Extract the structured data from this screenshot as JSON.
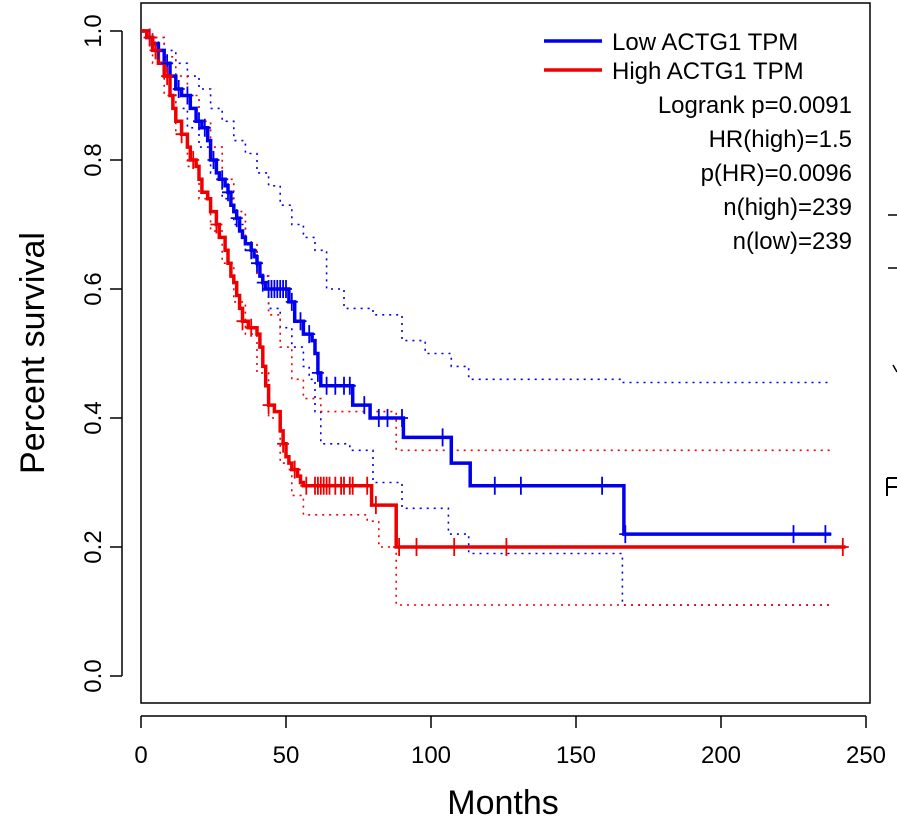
{
  "chart_data": {
    "type": "line",
    "subtype": "kaplan-meier",
    "title": "",
    "xlabel": "Months",
    "ylabel": "Percent survival",
    "xlim": [
      0,
      250
    ],
    "ylim": [
      0,
      1.0
    ],
    "x_ticks": [
      "0",
      "50",
      "100",
      "150",
      "200",
      "250"
    ],
    "y_ticks": [
      "0.0",
      "0.2",
      "0.4",
      "0.6",
      "0.8",
      "1.0"
    ],
    "grid": false,
    "legend_position": "top-right",
    "series": [
      {
        "name": "Low ACTG1 TPM",
        "color": "#0000ee",
        "steps": [
          [
            0,
            1.0
          ],
          [
            2,
            0.99
          ],
          [
            4,
            0.98
          ],
          [
            6,
            0.97
          ],
          [
            8,
            0.95
          ],
          [
            10,
            0.93
          ],
          [
            12,
            0.91
          ],
          [
            14,
            0.9
          ],
          [
            17,
            0.88
          ],
          [
            19,
            0.86
          ],
          [
            21,
            0.85
          ],
          [
            23,
            0.83
          ],
          [
            24,
            0.8
          ],
          [
            26,
            0.78
          ],
          [
            27,
            0.77
          ],
          [
            29,
            0.76
          ],
          [
            30,
            0.75
          ],
          [
            31,
            0.73
          ],
          [
            32,
            0.72
          ],
          [
            33,
            0.71
          ],
          [
            34,
            0.69
          ],
          [
            35,
            0.68
          ],
          [
            36,
            0.67
          ],
          [
            38,
            0.66
          ],
          [
            39,
            0.65
          ],
          [
            40,
            0.64
          ],
          [
            41,
            0.62
          ],
          [
            42,
            0.61
          ],
          [
            43,
            0.6
          ],
          [
            50,
            0.6
          ],
          [
            51,
            0.58
          ],
          [
            53,
            0.55
          ],
          [
            56,
            0.53
          ],
          [
            59,
            0.52
          ],
          [
            60,
            0.5
          ],
          [
            61,
            0.47
          ],
          [
            62,
            0.45
          ],
          [
            72,
            0.45
          ],
          [
            73,
            0.42
          ],
          [
            78,
            0.42
          ],
          [
            79,
            0.4
          ],
          [
            90,
            0.4
          ],
          [
            90.5,
            0.37
          ],
          [
            106,
            0.37
          ],
          [
            107,
            0.33
          ],
          [
            113,
            0.33
          ],
          [
            113.5,
            0.295
          ],
          [
            166,
            0.295
          ],
          [
            166.5,
            0.22
          ],
          [
            238,
            0.22
          ]
        ],
        "ci_upper": [
          [
            0,
            1.0
          ],
          [
            4,
            0.99
          ],
          [
            8,
            0.97
          ],
          [
            12,
            0.95
          ],
          [
            16,
            0.93
          ],
          [
            20,
            0.91
          ],
          [
            24,
            0.88
          ],
          [
            28,
            0.86
          ],
          [
            32,
            0.83
          ],
          [
            36,
            0.81
          ],
          [
            40,
            0.78
          ],
          [
            44,
            0.76
          ],
          [
            48,
            0.73
          ],
          [
            52,
            0.7
          ],
          [
            56,
            0.68
          ],
          [
            60,
            0.66
          ],
          [
            64,
            0.6
          ],
          [
            70,
            0.57
          ],
          [
            80,
            0.56
          ],
          [
            90,
            0.52
          ],
          [
            98,
            0.5
          ],
          [
            107,
            0.48
          ],
          [
            113,
            0.46
          ],
          [
            166,
            0.455
          ],
          [
            238,
            0.455
          ]
        ],
        "ci_lower": [
          [
            0,
            1.0
          ],
          [
            4,
            0.97
          ],
          [
            8,
            0.93
          ],
          [
            12,
            0.88
          ],
          [
            16,
            0.85
          ],
          [
            20,
            0.82
          ],
          [
            24,
            0.78
          ],
          [
            28,
            0.74
          ],
          [
            32,
            0.7
          ],
          [
            36,
            0.66
          ],
          [
            40,
            0.62
          ],
          [
            44,
            0.57
          ],
          [
            48,
            0.54
          ],
          [
            52,
            0.51
          ],
          [
            56,
            0.48
          ],
          [
            58,
            0.46
          ],
          [
            60,
            0.41
          ],
          [
            62,
            0.36
          ],
          [
            72,
            0.35
          ],
          [
            80,
            0.3
          ],
          [
            90,
            0.26
          ],
          [
            106,
            0.22
          ],
          [
            113,
            0.19
          ],
          [
            166,
            0.11
          ],
          [
            238,
            0.11
          ]
        ],
        "censor_x": [
          3,
          6,
          9,
          13,
          16,
          20,
          22,
          25,
          28,
          30,
          33,
          38,
          40,
          42,
          44,
          45,
          46,
          47,
          48,
          49,
          50,
          52,
          55,
          58,
          61,
          64,
          67,
          70,
          72,
          77,
          82,
          85,
          90,
          104,
          122,
          131,
          159,
          167,
          225,
          236
        ]
      },
      {
        "name": "High ACTG1 TPM",
        "color": "#ee0000",
        "steps": [
          [
            0,
            1.0
          ],
          [
            2,
            0.99
          ],
          [
            4,
            0.97
          ],
          [
            6,
            0.95
          ],
          [
            8,
            0.93
          ],
          [
            10,
            0.9
          ],
          [
            11,
            0.88
          ],
          [
            12,
            0.86
          ],
          [
            14,
            0.84
          ],
          [
            16,
            0.82
          ],
          [
            17,
            0.8
          ],
          [
            19,
            0.79
          ],
          [
            20,
            0.77
          ],
          [
            21,
            0.75
          ],
          [
            23,
            0.74
          ],
          [
            24,
            0.72
          ],
          [
            26,
            0.7
          ],
          [
            27,
            0.68
          ],
          [
            29,
            0.66
          ],
          [
            30,
            0.64
          ],
          [
            31,
            0.62
          ],
          [
            32,
            0.61
          ],
          [
            33,
            0.59
          ],
          [
            34,
            0.57
          ],
          [
            35,
            0.55
          ],
          [
            37,
            0.54
          ],
          [
            40,
            0.53
          ],
          [
            41,
            0.51
          ],
          [
            42,
            0.48
          ],
          [
            43,
            0.45
          ],
          [
            44,
            0.42
          ],
          [
            46,
            0.41
          ],
          [
            48,
            0.38
          ],
          [
            49,
            0.36
          ],
          [
            50,
            0.34
          ],
          [
            51,
            0.33
          ],
          [
            52,
            0.32
          ],
          [
            54,
            0.31
          ],
          [
            55,
            0.3
          ],
          [
            56,
            0.295
          ],
          [
            79,
            0.295
          ],
          [
            79.5,
            0.265
          ],
          [
            87.5,
            0.265
          ],
          [
            88,
            0.2
          ],
          [
            243,
            0.2
          ]
        ],
        "ci_upper": [
          [
            0,
            1.0
          ],
          [
            4,
            0.99
          ],
          [
            8,
            0.96
          ],
          [
            12,
            0.93
          ],
          [
            16,
            0.9
          ],
          [
            20,
            0.86
          ],
          [
            24,
            0.82
          ],
          [
            28,
            0.77
          ],
          [
            32,
            0.72
          ],
          [
            36,
            0.67
          ],
          [
            40,
            0.62
          ],
          [
            44,
            0.56
          ],
          [
            48,
            0.51
          ],
          [
            52,
            0.46
          ],
          [
            56,
            0.43
          ],
          [
            62,
            0.41
          ],
          [
            78,
            0.41
          ],
          [
            88,
            0.35
          ],
          [
            238,
            0.35
          ]
        ],
        "ci_lower": [
          [
            0,
            1.0
          ],
          [
            4,
            0.95
          ],
          [
            8,
            0.9
          ],
          [
            12,
            0.84
          ],
          [
            16,
            0.79
          ],
          [
            20,
            0.74
          ],
          [
            24,
            0.69
          ],
          [
            28,
            0.64
          ],
          [
            32,
            0.58
          ],
          [
            36,
            0.53
          ],
          [
            40,
            0.47
          ],
          [
            44,
            0.4
          ],
          [
            48,
            0.33
          ],
          [
            52,
            0.28
          ],
          [
            56,
            0.25
          ],
          [
            78,
            0.24
          ],
          [
            82,
            0.2
          ],
          [
            88,
            0.11
          ],
          [
            238,
            0.11
          ]
        ],
        "censor_x": [
          3,
          5,
          9,
          14,
          18,
          26,
          35,
          38,
          44,
          49,
          53,
          57,
          60,
          61,
          62,
          63,
          64,
          65,
          67,
          69,
          70,
          72,
          73,
          78,
          81,
          89,
          95,
          108,
          126,
          242
        ]
      }
    ],
    "annotations": [
      "Logrank p=0.0091",
      "HR(high)=1.5",
      "p(HR)=0.0096",
      "n(high)=239",
      "n(low)=239"
    ]
  }
}
